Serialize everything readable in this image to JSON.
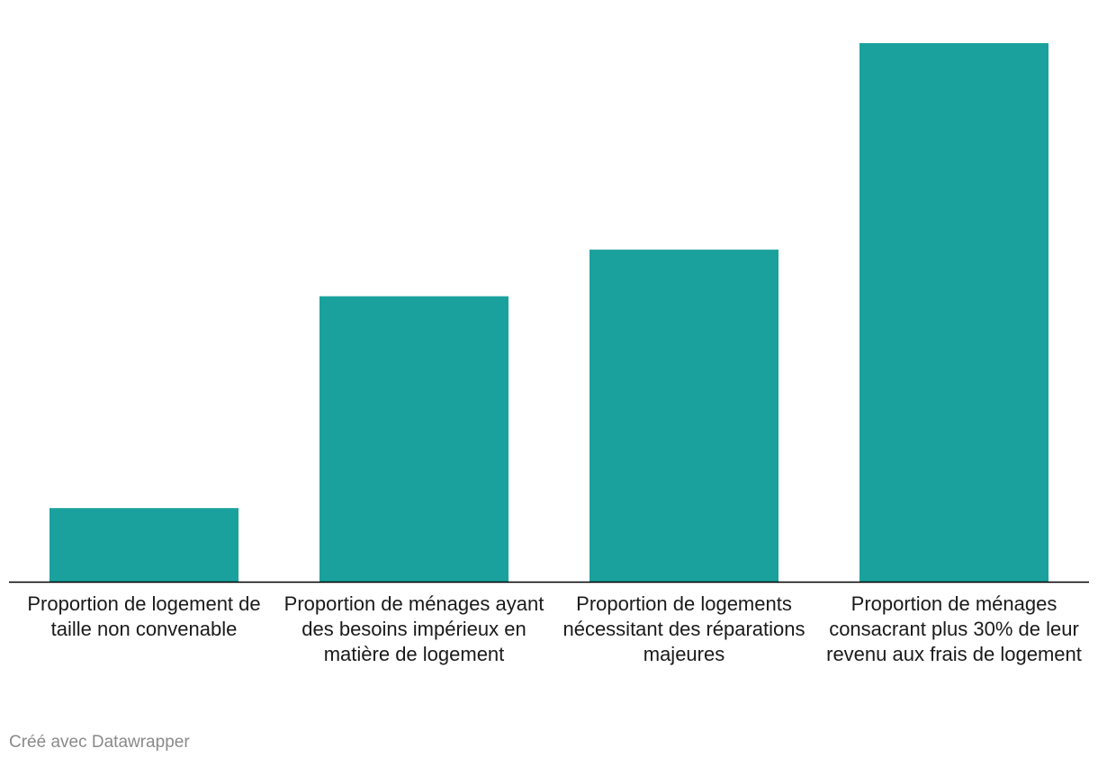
{
  "chart_data": {
    "type": "bar",
    "categories": [
      "Proportion de logement de taille non convenable",
      "Proportion de ménages ayant des besoins impérieux en matière de logement",
      "Proportion de logements nécessitant des réparations majeures",
      "Proportion de ménages consacrant plus 30% de leur revenu aux frais de logement"
    ],
    "values": [
      4.1,
      15.9,
      18.5,
      30.0
    ],
    "ylim": [
      0,
      30
    ],
    "bar_color": "#1aa19d",
    "axis_color": "#000000",
    "grid": false,
    "title": "",
    "xlabel": "",
    "ylabel": ""
  },
  "footer": {
    "credit": "Créé avec Datawrapper"
  }
}
